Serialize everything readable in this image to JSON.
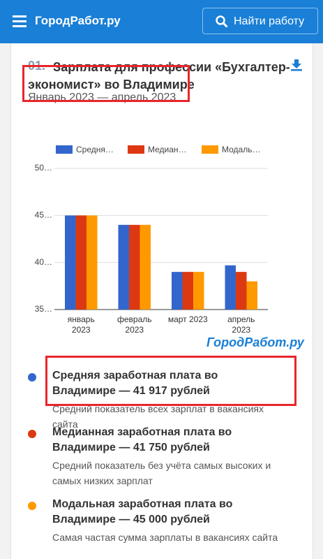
{
  "header": {
    "logo": "ГородРабот.ру",
    "search_button": "Найти работу"
  },
  "section": {
    "number": "01.",
    "title": "Зарплата для профессии «Бухгалтер-экономист» во Владимире",
    "subtitle": "Январь 2023 — апрель 2023"
  },
  "chart_data": {
    "type": "bar",
    "categories": [
      "январь 2023",
      "февраль 2023",
      "март 2023",
      "апрель 2023"
    ],
    "series": [
      {
        "name": "Средня…",
        "color": "#3366cc",
        "values": [
          45,
          44,
          39,
          39.7
        ]
      },
      {
        "name": "Медиан…",
        "color": "#dc3912",
        "values": [
          45,
          44,
          39,
          39
        ]
      },
      {
        "name": "Модаль…",
        "color": "#ff9900",
        "values": [
          45,
          44,
          39,
          38
        ]
      }
    ],
    "ylim": [
      35,
      50
    ],
    "yticks": [
      {
        "value": 35,
        "label": "35…"
      },
      {
        "value": 40,
        "label": "40…"
      },
      {
        "value": 45,
        "label": "45…"
      },
      {
        "value": 50,
        "label": "50…"
      }
    ],
    "grid": true,
    "legend": "top",
    "watermark": "ГородРабот.ру"
  },
  "stats": [
    {
      "title": "Средняя заработная плата во Владимире — 41 917 рублей",
      "description": "Средний показатель всех зарплат в вакансиях сайта"
    },
    {
      "title": "Медианная заработная плата во Владимире — 41 750 рублей",
      "description": "Средний показатель без учёта самых высоких и самых низких зарплат"
    },
    {
      "title": "Модальная заработная плата во Владимире — 45 000 рублей",
      "description": "Самая частая сумма зарплаты в вакансиях сайта"
    }
  ]
}
